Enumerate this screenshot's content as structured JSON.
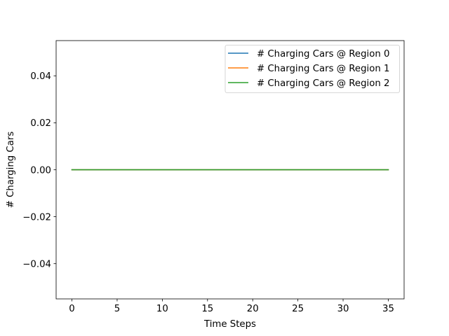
{
  "chart_data": {
    "type": "line",
    "title": "",
    "xlabel": "Time Steps",
    "ylabel": "# Charging Cars",
    "xlim": [
      -1.75,
      36.75
    ],
    "ylim": [
      -0.055,
      0.055
    ],
    "xticks": [
      0,
      5,
      10,
      15,
      20,
      25,
      30,
      35
    ],
    "xtick_labels": [
      "0",
      "5",
      "10",
      "15",
      "20",
      "25",
      "30",
      "35"
    ],
    "yticks": [
      -0.04,
      -0.02,
      0.0,
      0.02,
      0.04
    ],
    "ytick_labels": [
      "−0.04",
      "−0.02",
      "0.00",
      "0.02",
      "0.04"
    ],
    "grid": false,
    "legend_position": "top-right",
    "x": [
      0,
      35
    ],
    "series": [
      {
        "name": "# Charging Cars @ Region 0",
        "color": "#1f77b4",
        "values": [
          0,
          0
        ]
      },
      {
        "name": "# Charging Cars @ Region 1",
        "color": "#ff7f0e",
        "values": [
          0,
          0
        ]
      },
      {
        "name": "# Charging Cars @ Region 2",
        "color": "#2ca02c",
        "values": [
          0,
          0
        ]
      }
    ]
  }
}
